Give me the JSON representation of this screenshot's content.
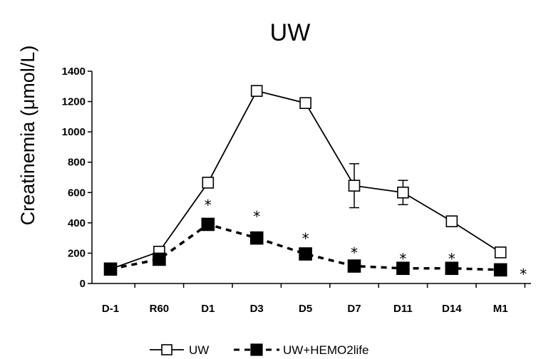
{
  "chart_data": {
    "type": "line",
    "title": "UW",
    "xlabel": "",
    "ylabel": "Creatinemia (μmol/L)",
    "categories": [
      "D-1",
      "R60",
      "D1",
      "D3",
      "D5",
      "D7",
      "D11",
      "D14",
      "M1"
    ],
    "ylim": [
      0,
      1400
    ],
    "yticks": [
      0,
      200,
      400,
      600,
      800,
      1000,
      1200,
      1400
    ],
    "grid": false,
    "legend_position": "bottom",
    "series": [
      {
        "name": "UW",
        "marker": "open-square",
        "line": "solid",
        "values": [
          95,
          210,
          665,
          1270,
          1190,
          645,
          600,
          410,
          205
        ],
        "error": [
          0,
          0,
          0,
          20,
          20,
          145,
          80,
          0,
          0
        ]
      },
      {
        "name": "UW+HEMO2life",
        "marker": "filled-square",
        "line": "dashed",
        "values": [
          95,
          160,
          390,
          300,
          195,
          115,
          100,
          100,
          90
        ],
        "error": [
          0,
          0,
          0,
          0,
          0,
          0,
          0,
          0,
          0
        ]
      }
    ],
    "annotations": [
      {
        "text": "*",
        "category": "D1",
        "y": 545
      },
      {
        "text": "*",
        "category": "D3",
        "y": 470
      },
      {
        "text": "*",
        "category": "D5",
        "y": 325
      },
      {
        "text": "*",
        "category": "D7",
        "y": 230
      },
      {
        "text": "*",
        "category": "D11",
        "y": 190
      },
      {
        "text": "*",
        "category": "D14",
        "y": 190
      },
      {
        "text": "*",
        "category": "after-M1",
        "y": 90
      }
    ]
  }
}
